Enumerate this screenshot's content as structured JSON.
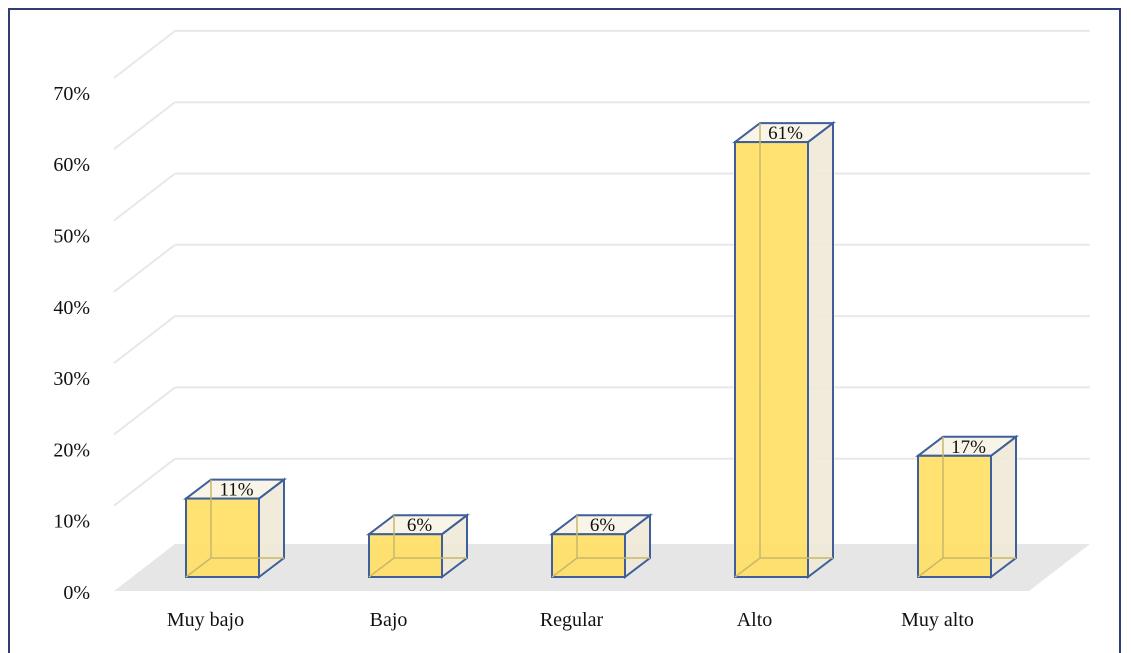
{
  "chart_data": {
    "type": "bar",
    "categories": [
      "Muy bajo",
      "Bajo",
      "Regular",
      "Alto",
      "Muy alto"
    ],
    "values": [
      11,
      6,
      6,
      61,
      17
    ],
    "value_labels": [
      "11%",
      "6%",
      "6%",
      "61%",
      "17%"
    ],
    "ylim": [
      0,
      70
    ],
    "y_ticks": [
      0,
      10,
      20,
      30,
      40,
      50,
      60,
      70
    ],
    "y_tick_labels": [
      "0%",
      "10%",
      "20%",
      "30%",
      "40%",
      "50%",
      "60%",
      "70%"
    ],
    "grid": true,
    "style": "3d-column",
    "colors": {
      "bar_front": "#ffe066",
      "bar_side": "#efe9d8",
      "bar_top": "#f7f3e6",
      "bar_edge": "#3e5f9a",
      "floor": "#e6e6e6",
      "grid": "#e8e8e8",
      "frame": "#2f3f76"
    }
  }
}
